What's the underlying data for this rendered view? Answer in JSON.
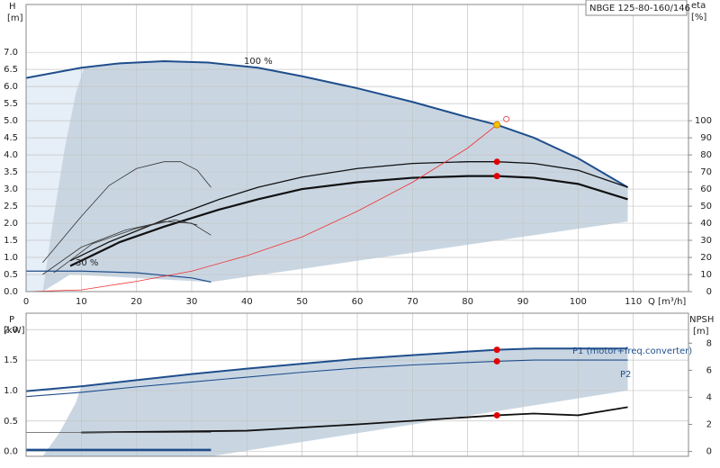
{
  "chart_data": [
    {
      "type": "line",
      "model": "NBGE 125-80-160/146",
      "ylabel": "H",
      "yunit": "[m]",
      "y2label": "eta",
      "y2unit": "[%]",
      "xlabel": "Q [m³/h]",
      "annotations": [
        "100 %",
        "30 %"
      ],
      "xlim": [
        0,
        120
      ],
      "xticks": [
        0,
        10,
        20,
        30,
        40,
        50,
        60,
        70,
        80,
        90,
        100,
        110
      ],
      "ylim": [
        0,
        8.4
      ],
      "yticks": [
        {
          "value": 0,
          "label": "0.0"
        },
        0.5,
        {
          "value": 1,
          "label": "1.0"
        },
        1.5,
        {
          "value": 2,
          "label": "2.0"
        },
        2.5,
        {
          "value": 3,
          "label": "3.0"
        },
        3.5,
        {
          "value": 4,
          "label": "4.0"
        },
        4.5,
        {
          "value": 5,
          "label": "5.0"
        },
        5.5,
        {
          "value": 6,
          "label": "6.0"
        },
        6.5,
        {
          "value": 7,
          "label": "7.0"
        }
      ],
      "y2lim": [
        0,
        168
      ],
      "y2ticks": [
        0,
        10,
        20,
        30,
        40,
        50,
        60,
        70,
        80,
        90,
        100
      ],
      "grid": true,
      "xtick_labels": true,
      "regions": [
        {
          "color": "#e6eef7",
          "x": [
            0,
            0,
            10.5,
            9,
            7,
            5,
            3
          ],
          "values": [
            0,
            6.25,
            6.55,
            5.8,
            4.2,
            2.2,
            0
          ]
        },
        {
          "color": "#c9d6e2",
          "x": [
            3,
            5,
            7,
            9,
            10.5,
            17,
            25,
            33,
            42,
            50,
            60,
            70,
            80,
            85.3,
            92,
            100,
            109,
            109,
            33.5,
            8,
            3
          ],
          "values": [
            0,
            2.2,
            4.2,
            5.8,
            6.55,
            6.68,
            6.74,
            6.7,
            6.55,
            6.3,
            5.95,
            5.55,
            5.1,
            4.88,
            4.5,
            3.9,
            3.05,
            2.05,
            0.28,
            0.5,
            0
          ]
        }
      ],
      "series": [
        {
          "color": "#1f4e8c",
          "width": 2,
          "x": [
            0,
            10,
            17,
            25,
            33,
            42,
            50,
            60,
            70,
            80,
            85.3,
            92,
            100,
            109
          ],
          "values": [
            6.25,
            6.55,
            6.68,
            6.74,
            6.7,
            6.55,
            6.3,
            5.95,
            5.55,
            5.1,
            4.88,
            4.5,
            3.9,
            3.05
          ]
        },
        {
          "color": "#1f4e8c",
          "width": 1.2,
          "x": [
            0,
            10,
            20,
            30,
            33.5
          ],
          "values": [
            0.6,
            0.6,
            0.55,
            0.4,
            0.28
          ]
        },
        {
          "color": "#111111",
          "width": 1.3,
          "axis": "y2",
          "x": [
            8,
            15,
            25,
            35,
            42,
            50,
            60,
            70,
            80,
            85.3,
            92,
            100,
            109
          ],
          "values": [
            18,
            29,
            42,
            54,
            61,
            67,
            72,
            75,
            76,
            76,
            75,
            71,
            61
          ]
        },
        {
          "color": "#111111",
          "width": 2.2,
          "axis": "y2",
          "x": [
            8,
            17,
            25,
            35,
            42,
            50,
            60,
            70,
            80,
            85.3,
            92,
            100,
            109
          ],
          "values": [
            15,
            29,
            38,
            48,
            54,
            60,
            64,
            66.6,
            67.6,
            67.6,
            66.6,
            63,
            54
          ]
        },
        {
          "color": "#333333",
          "width": 0.8,
          "axis": "y2",
          "x": [
            3,
            10,
            15,
            20,
            25,
            28,
            31,
            33.5
          ],
          "values": [
            17,
            44,
            62,
            72,
            76,
            76,
            71,
            61
          ]
        },
        {
          "color": "#333333",
          "width": 0.8,
          "axis": "y2",
          "x": [
            3,
            10,
            18,
            25,
            30,
            33.5
          ],
          "values": [
            10,
            26,
            36,
            41,
            40,
            33
          ]
        },
        {
          "color": "#333333",
          "width": 0.8,
          "axis": "y2",
          "x": [
            5,
            12,
            20,
            27,
            31
          ],
          "values": [
            11,
            28,
            37,
            42,
            39
          ]
        },
        {
          "color": "#f03030",
          "width": 0.8,
          "x": [
            0,
            10,
            20,
            30,
            40,
            50,
            60,
            70,
            80,
            85.3
          ],
          "values": [
            0,
            0.05,
            0.3,
            0.6,
            1.05,
            1.6,
            2.35,
            3.2,
            4.2,
            4.88
          ]
        }
      ],
      "points": [
        {
          "x": 85.3,
          "y": 4.88,
          "color": "#f5c400"
        },
        {
          "x": 87,
          "y": 5.05,
          "color": "#f03030",
          "hollow": true
        },
        {
          "x": 85.3,
          "y": 76,
          "axis": "y2",
          "color": "#e00000"
        },
        {
          "x": 85.3,
          "y": 67.6,
          "axis": "y2",
          "color": "#e00000"
        }
      ]
    },
    {
      "type": "line",
      "ylabel": "P",
      "yunit": "[kW]",
      "y2label": "NPSH",
      "y2unit": "[m]",
      "xlim": [
        0,
        120
      ],
      "xticks": [
        0,
        10,
        20,
        30,
        40,
        50,
        60,
        70,
        80,
        90,
        100,
        110
      ],
      "ylim": [
        -0.08,
        2.27
      ],
      "yticks": [
        {
          "value": 0,
          "label": "0.0"
        },
        0.5,
        {
          "value": 1,
          "label": "1.0"
        },
        1.5,
        {
          "value": 2,
          "label": "2.0"
        }
      ],
      "y2lim": [
        -0.36,
        10.215
      ],
      "y2ticks": [
        0,
        2,
        4,
        6,
        8
      ],
      "grid": true,
      "xtick_labels": false,
      "regions": [
        {
          "color": "#c9d6e2",
          "x": [
            3,
            6,
            9,
            10,
            20,
            30,
            40,
            50,
            60,
            70,
            80,
            85.3,
            92,
            109,
            109,
            33.5,
            3
          ],
          "values": [
            -0.08,
            0.3,
            0.8,
            1.07,
            1.17,
            1.27,
            1.36,
            1.44,
            1.52,
            1.58,
            1.64,
            1.67,
            1.69,
            1.69,
            1.0,
            -0.08,
            -0.08
          ]
        }
      ],
      "series": [
        {
          "name": "P1 (motor+freq.converter)",
          "color": "#1f4e8c",
          "width": 2,
          "x": [
            0,
            10,
            20,
            30,
            40,
            50,
            60,
            70,
            80,
            85.3,
            92,
            109
          ],
          "values": [
            0.99,
            1.07,
            1.17,
            1.27,
            1.36,
            1.44,
            1.52,
            1.58,
            1.64,
            1.67,
            1.69,
            1.69
          ]
        },
        {
          "name": "P2",
          "color": "#1f4e8c",
          "width": 1.1,
          "x": [
            0,
            10,
            20,
            30,
            40,
            50,
            60,
            70,
            80,
            85.3,
            92,
            109
          ],
          "values": [
            0.9,
            0.97,
            1.06,
            1.14,
            1.22,
            1.3,
            1.37,
            1.42,
            1.46,
            1.48,
            1.5,
            1.5
          ]
        },
        {
          "color": "#111111",
          "width": 1.8,
          "axis": "y2",
          "x": [
            10,
            40,
            60,
            80,
            85.3,
            92,
            100,
            109
          ],
          "values": [
            1.4,
            1.53,
            2.0,
            2.53,
            2.67,
            2.8,
            2.67,
            3.27
          ]
        },
        {
          "color": "#555555",
          "width": 0.8,
          "x": [
            0,
            33.5
          ],
          "values": [
            0.31,
            0.31
          ]
        },
        {
          "color": "#1f4e8c",
          "width": 1.8,
          "x": [
            0,
            33.5
          ],
          "values": [
            0.03,
            0.03
          ]
        },
        {
          "color": "#1f4e8c",
          "width": 0.8,
          "x": [
            0,
            33.5
          ],
          "values": [
            0.01,
            0.01
          ]
        }
      ],
      "points": [
        {
          "x": 85.3,
          "y": 1.67,
          "color": "#e00000"
        },
        {
          "x": 85.3,
          "y": 1.48,
          "color": "#e00000"
        },
        {
          "x": 85.3,
          "y": 2.67,
          "axis": "y2",
          "color": "#e00000"
        }
      ]
    }
  ]
}
